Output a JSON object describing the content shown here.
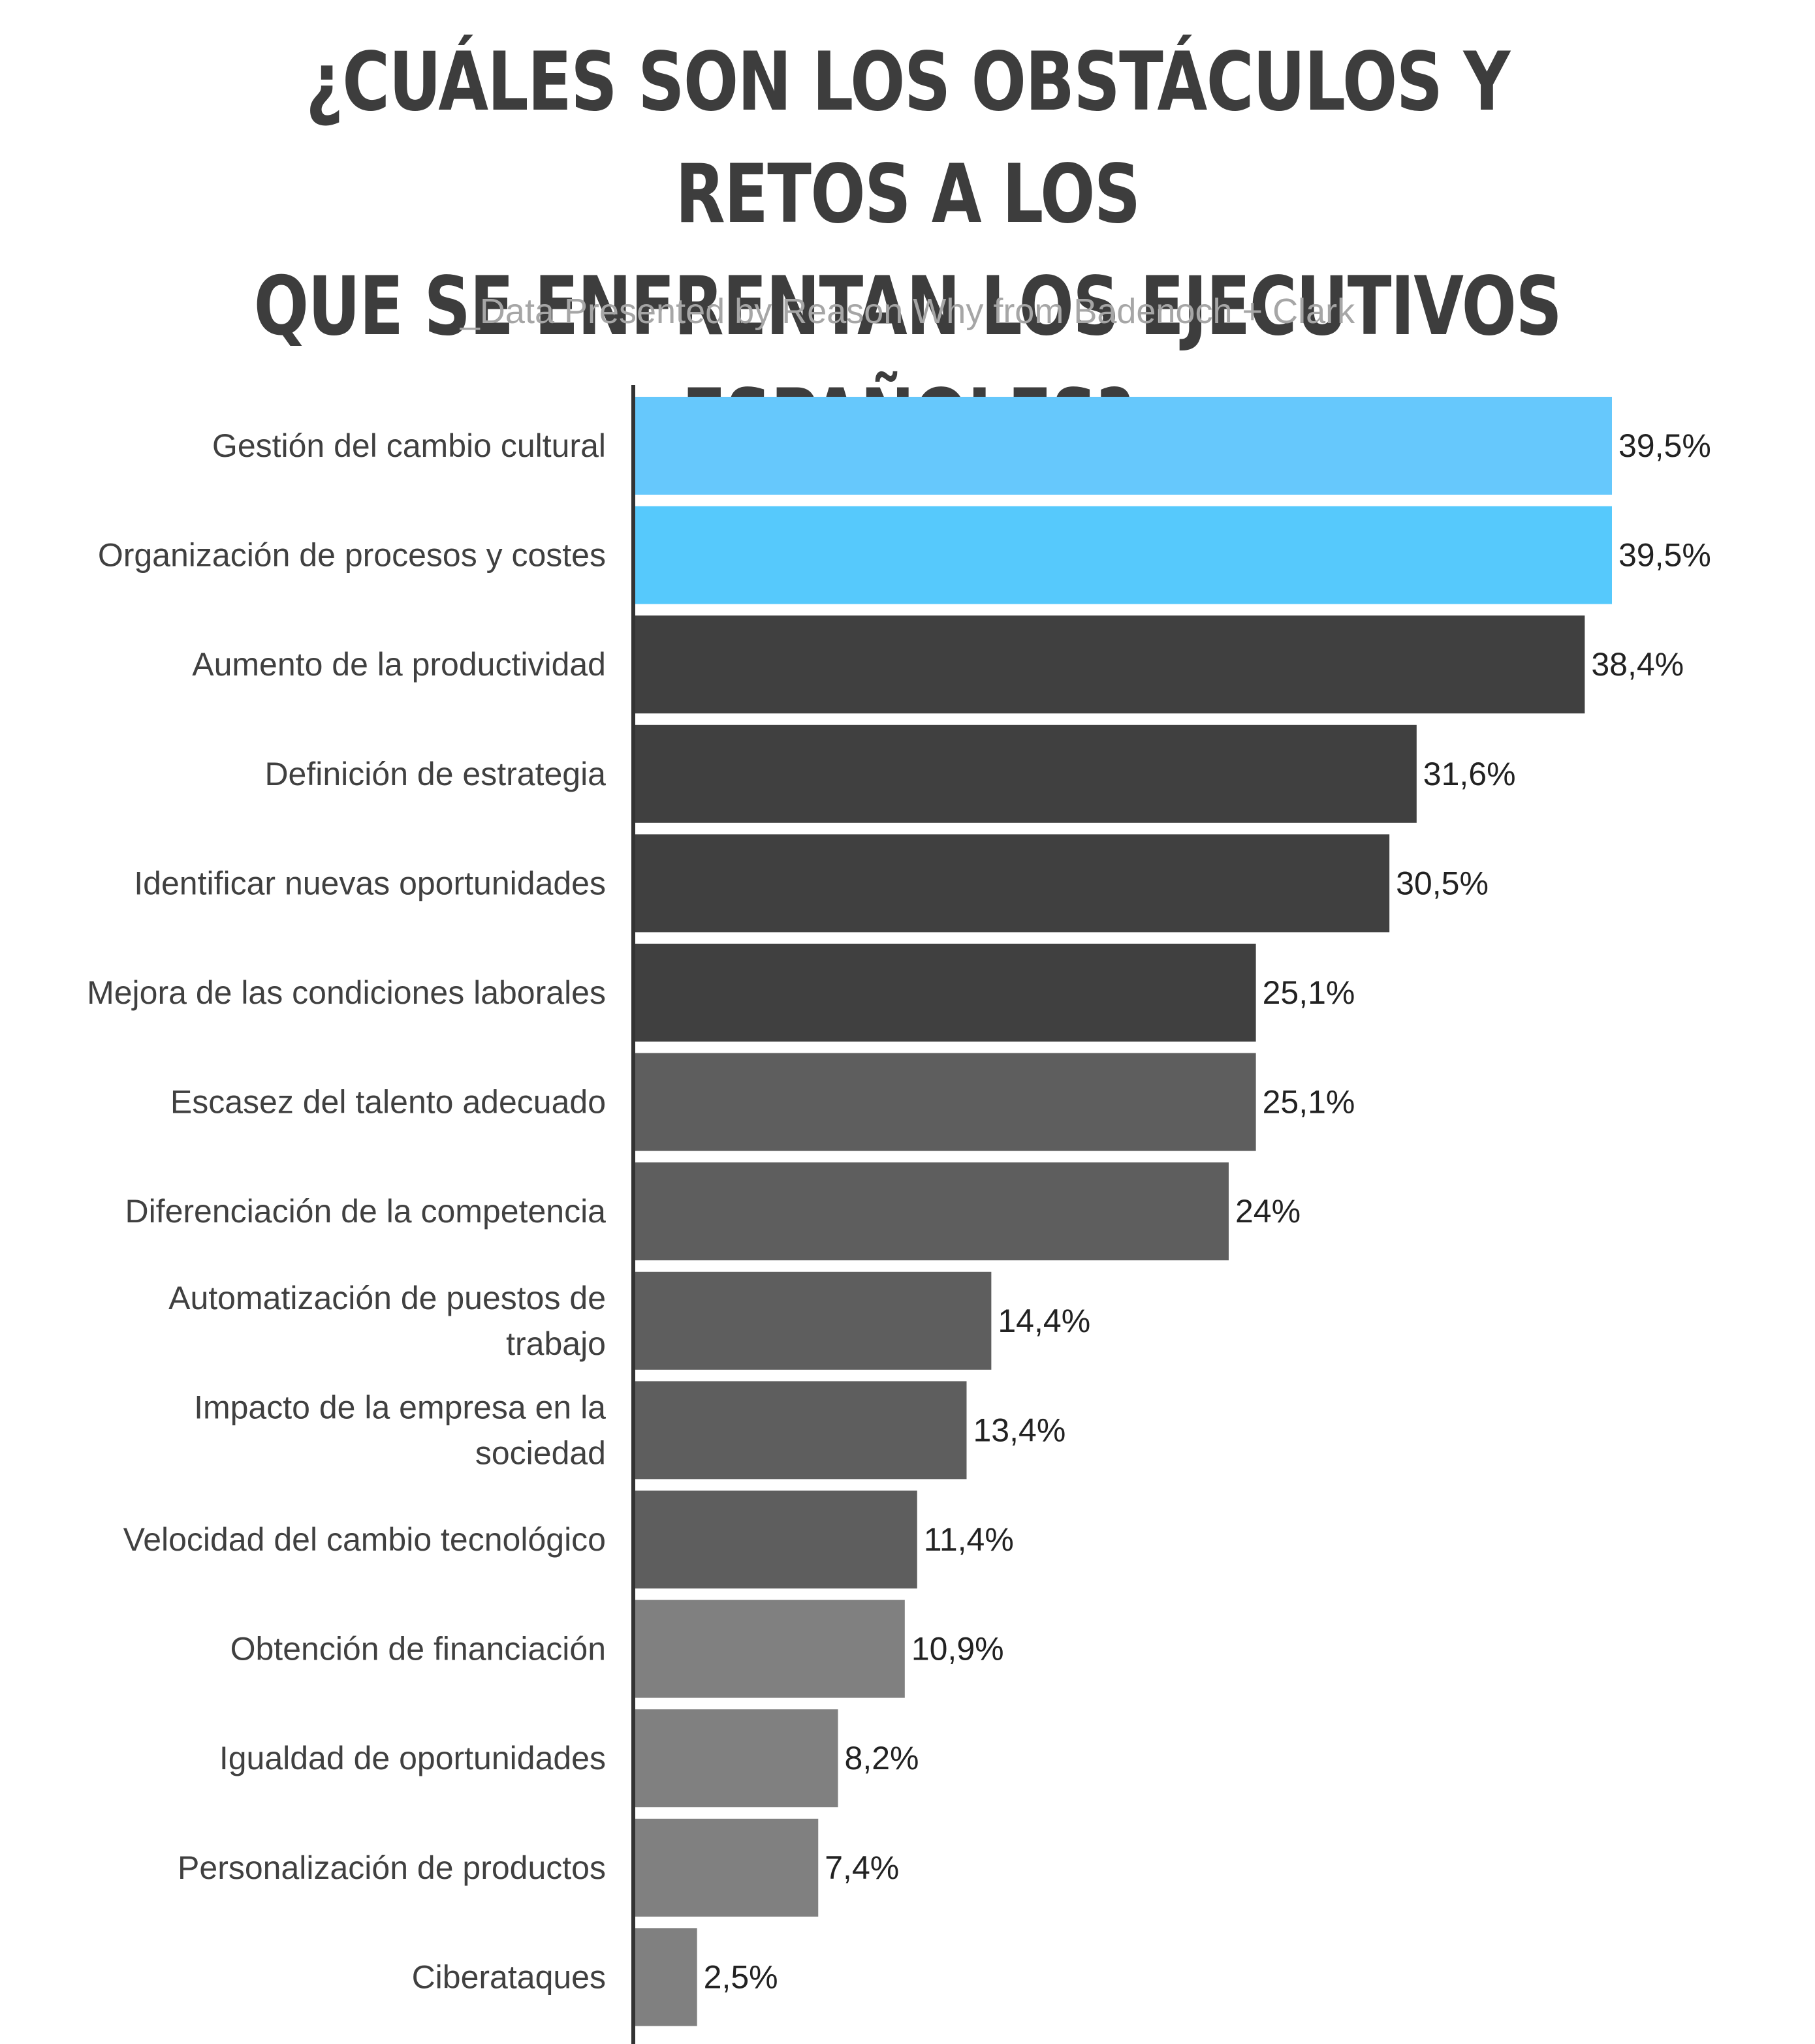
{
  "chart_data": {
    "type": "bar",
    "orientation": "horizontal",
    "title_lines": [
      "¿CUÁLES SON LOS OBSTÁCULOS Y RETOS A LOS",
      "QUE SE ENFRENTAN LOS EJECUTIVOS ESPAÑOLES?"
    ],
    "subtitle": "_Data Presented by Reason Why from Badenoch + Clark",
    "xlim": [
      0,
      39.5
    ],
    "grid": false,
    "categories": [
      [
        "Gestión del cambio cultural"
      ],
      [
        "Organización de procesos y costes"
      ],
      [
        "Aumento de la productividad"
      ],
      [
        "Definición de estrategia"
      ],
      [
        "Identificar nuevas oportunidades"
      ],
      [
        "Mejora de las condiciones laborales"
      ],
      [
        "Escasez del talento adecuado"
      ],
      [
        "Diferenciación de la competencia"
      ],
      [
        "Automatización de puestos de",
        "trabajo"
      ],
      [
        "Impacto de la empresa en la",
        "sociedad"
      ],
      [
        "Velocidad del cambio tecnológico"
      ],
      [
        "Obtención de financiación"
      ],
      [
        "Igualdad de oportunidades"
      ],
      [
        "Personalización de productos"
      ],
      [
        "Ciberataques"
      ]
    ],
    "values": [
      39.5,
      39.5,
      38.4,
      31.6,
      30.5,
      25.1,
      25.1,
      24,
      14.4,
      13.4,
      11.4,
      10.9,
      8.2,
      7.4,
      2.5
    ],
    "value_labels": [
      "39,5%",
      "39,5%",
      "38,4%",
      "31,6%",
      "30,5%",
      "25,1%",
      "25,1%",
      "24%",
      "14,4%",
      "13,4%",
      "11,4%",
      "10,9%",
      "8,2%",
      "7,4%",
      "2,5%"
    ],
    "colors": [
      "#66c8fc",
      "#56c9fc",
      "#404040",
      "#404040",
      "#404040",
      "#404040",
      "#5e5e5e",
      "#5e5e5e",
      "#5e5e5e",
      "#5e5e5e",
      "#5e5e5e",
      "#808080",
      "#808080",
      "#808080",
      "#808080"
    ],
    "axis_color": "#333333"
  }
}
